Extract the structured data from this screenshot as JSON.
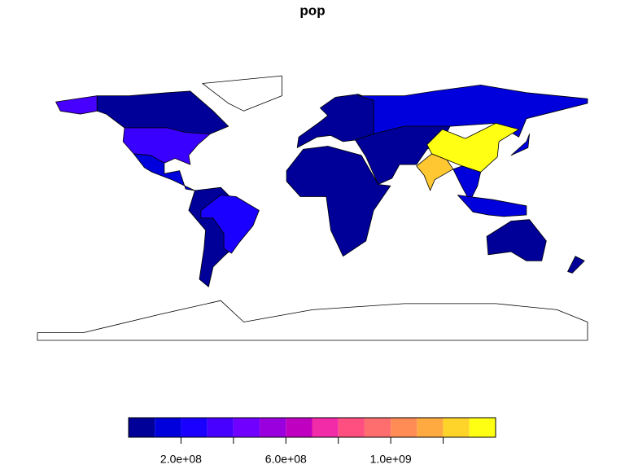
{
  "chart_data": {
    "type": "choropleth",
    "title": "pop",
    "legend": {
      "breaks": [
        0,
        100000000,
        200000000,
        300000000,
        400000000,
        500000000,
        600000000,
        700000000,
        800000000,
        900000000,
        1000000000,
        1100000000,
        1200000000,
        1300000000,
        1400000000
      ],
      "colors": [
        "#000099",
        "#0000DD",
        "#1A00FF",
        "#4700FF",
        "#7000FF",
        "#9900DD",
        "#C000C0",
        "#F22BA8",
        "#FF4F80",
        "#FF6E6E",
        "#FF8C55",
        "#FFAA40",
        "#FFD42A",
        "#FFFF14"
      ],
      "ticks": [
        {
          "value": 200000000,
          "label": "2.0e+08"
        },
        {
          "value": 400000000,
          "label": null
        },
        {
          "value": 600000000,
          "label": "6.0e+08"
        },
        {
          "value": 800000000,
          "label": null
        },
        {
          "value": 1000000000,
          "label": "1.0e+09"
        },
        {
          "value": 1200000000,
          "label": null
        }
      ]
    }
  }
}
